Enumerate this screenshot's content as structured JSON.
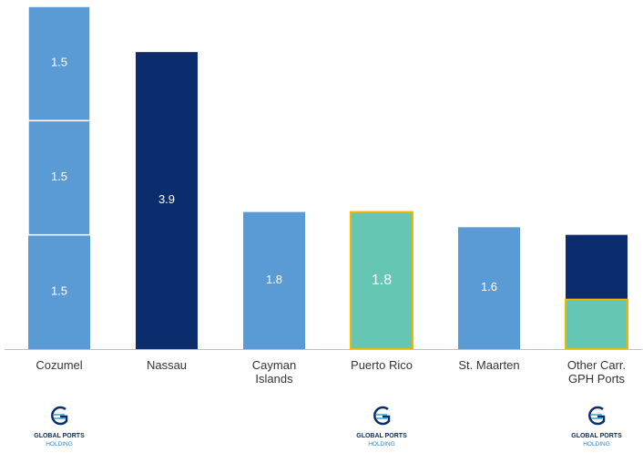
{
  "chart_data": {
    "type": "bar",
    "categories": [
      "Cozumel",
      "Nassau",
      "Cayman\nIslands",
      "Puerto Rico",
      "St. Maarten",
      "Other Carr.\nGPH Ports"
    ],
    "series": [
      {
        "color": "#5b9bd5",
        "values": [
          1.5,
          null,
          1.8,
          null,
          1.6,
          null
        ]
      },
      {
        "color": "#5b9bd5",
        "values": [
          1.5,
          null,
          null,
          null,
          null,
          null
        ]
      },
      {
        "color": "#5b9bd5",
        "values": [
          1.5,
          null,
          null,
          null,
          null,
          null
        ]
      },
      {
        "color": "#0b2d6e",
        "values": [
          null,
          3.9,
          null,
          null,
          null,
          1.5
        ]
      },
      {
        "color": "#66c6b4",
        "border": "#f2b600",
        "overlay": true,
        "values": [
          null,
          null,
          null,
          1.8,
          null,
          0.65
        ],
        "value_labels": [
          null,
          null,
          null,
          "1.8",
          null,
          null
        ]
      }
    ],
    "ylim": [
      0,
      4.5
    ],
    "logo": [
      "GLOBAL PORTS",
      "HOLDING"
    ],
    "logos": [
      true,
      false,
      false,
      true,
      false,
      true
    ]
  }
}
